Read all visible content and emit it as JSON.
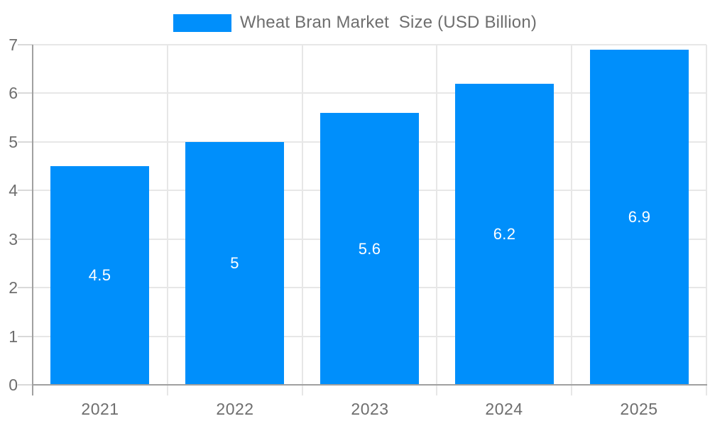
{
  "chart_data": {
    "type": "bar",
    "title": "Wheat Bran Market  Size (USD Billion)",
    "categories": [
      "2021",
      "2022",
      "2023",
      "2024",
      "2025"
    ],
    "series": [
      {
        "name": "Wheat Bran Market  Size (USD Billion)",
        "values": [
          4.5,
          5,
          5.6,
          6.2,
          6.9
        ]
      }
    ],
    "bar_labels": [
      "4.5",
      "5",
      "5.6",
      "6.2",
      "6.9"
    ],
    "xlabel": "",
    "ylabel": "",
    "ylim": [
      0,
      7
    ],
    "y_ticks": [
      0,
      1,
      2,
      3,
      4,
      5,
      6,
      7
    ],
    "grid": true,
    "legend_position": "top",
    "colors": {
      "bar": "#008FFB",
      "grid_line": "#e7e7e7",
      "axis_line": "#a0a0a0",
      "tick_line": "#d9d9d9",
      "text": "#6e6e6e",
      "bar_label_text": "#ffffff",
      "background": "#ffffff"
    }
  },
  "legend": {
    "label": "Wheat Bran Market  Size (USD Billion)"
  }
}
